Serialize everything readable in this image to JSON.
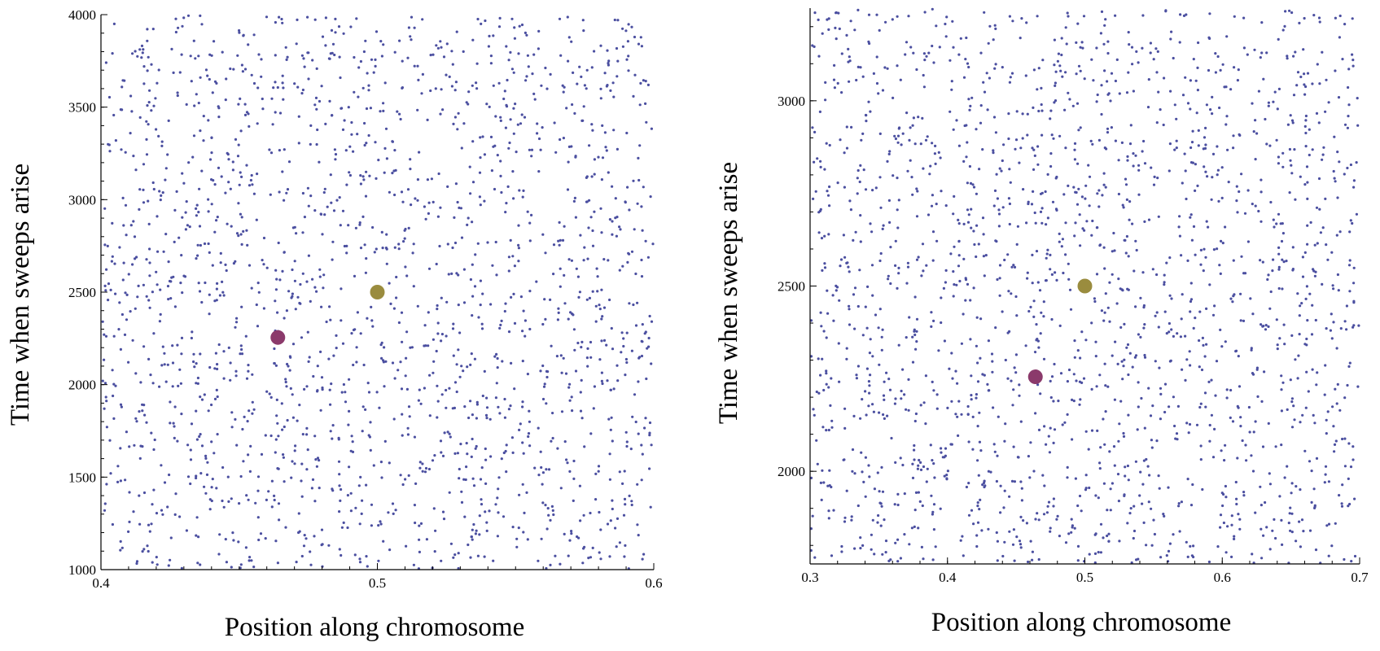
{
  "colors": {
    "points": "#4b4fa0",
    "highlight_purple": "#8b3a6b",
    "highlight_olive": "#9a8c3e"
  },
  "chart_data": [
    {
      "type": "scatter",
      "title": "",
      "xlabel": "Position along chromosome",
      "ylabel": "Time when sweeps arise",
      "xlim": [
        0.4,
        0.6
      ],
      "ylim": [
        1000,
        4000
      ],
      "xticks": [
        0.4,
        0.5,
        0.6
      ],
      "xtick_labels": [
        "0.4",
        "0.5",
        "0.6"
      ],
      "yticks": [
        1000,
        1500,
        2000,
        2500,
        3000,
        3500,
        4000
      ],
      "ytick_labels": [
        "1000",
        "1500",
        "2000",
        "2500",
        "3000",
        "3500",
        "4000"
      ],
      "grid": false,
      "background_points": {
        "count": 1900,
        "distribution": "uniform over plot area",
        "color": "#4b4fa0"
      },
      "highlighted_points": [
        {
          "x": 0.464,
          "y": 2255,
          "color": "#8b3a6b"
        },
        {
          "x": 0.5,
          "y": 2500,
          "color": "#9a8c3e"
        }
      ]
    },
    {
      "type": "scatter",
      "title": "",
      "xlabel": "Position along chromosome",
      "ylabel": "Time when sweeps arise",
      "xlim": [
        0.3,
        0.7
      ],
      "ylim": [
        1750,
        3250
      ],
      "xticks": [
        0.3,
        0.4,
        0.5,
        0.6,
        0.7
      ],
      "xtick_labels": [
        "0.3",
        "0.4",
        "0.5",
        "0.6",
        "0.7"
      ],
      "yticks": [
        2000,
        2500,
        3000
      ],
      "ytick_labels": [
        "2000",
        "2500",
        "3000"
      ],
      "grid": false,
      "background_points": {
        "count": 1900,
        "distribution": "uniform over plot area",
        "color": "#4b4fa0"
      },
      "highlighted_points": [
        {
          "x": 0.464,
          "y": 2255,
          "color": "#8b3a6b"
        },
        {
          "x": 0.5,
          "y": 2500,
          "color": "#9a8c3e"
        }
      ]
    }
  ]
}
